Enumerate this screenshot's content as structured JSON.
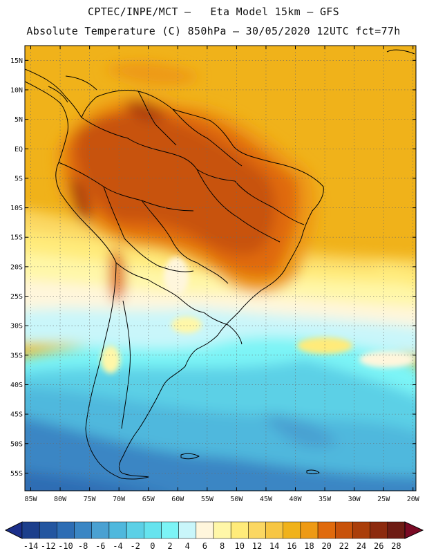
{
  "header": {
    "line1": "CPTEC/INPE/MCT –   Eta Model 15km – GFS",
    "line2": "Absolute Temperature (C) 850hPa – 30/05/2020 12UTC fct=77h"
  },
  "map": {
    "lon_range": [
      -86,
      -19.5
    ],
    "lat_range": [
      -58,
      17.5
    ],
    "lat_labels": [
      "15N",
      "10N",
      "5N",
      "EQ",
      "5S",
      "10S",
      "15S",
      "20S",
      "25S",
      "30S",
      "35S",
      "40S",
      "45S",
      "50S",
      "55S"
    ],
    "lon_labels": [
      "85W",
      "80W",
      "75W",
      "70W",
      "65W",
      "60W",
      "55W",
      "50W",
      "45W",
      "40W",
      "35W",
      "30W",
      "25W",
      "20W"
    ]
  },
  "colorbar": {
    "ticks": [
      "-14",
      "-12",
      "-10",
      "-8",
      "-6",
      "-4",
      "-2",
      "0",
      "2",
      "4",
      "6",
      "8",
      "10",
      "12",
      "14",
      "16",
      "18",
      "20",
      "22",
      "24",
      "26",
      "28"
    ],
    "colors": [
      "#1c3f8c",
      "#2356a0",
      "#2d6db4",
      "#3a86c4",
      "#4aa1d2",
      "#4fb8dd",
      "#5cd0e6",
      "#66e3ee",
      "#7cf4f6",
      "#c9f6fa",
      "#fff6dc",
      "#fff7a8",
      "#ffeb7a",
      "#fbd762",
      "#f7c643",
      "#f0b21a",
      "#ee9a14",
      "#e06a0c",
      "#c8520a",
      "#aa3e0a",
      "#8c2a0e",
      "#6e1c14"
    ],
    "under_color": "#1b2f8a",
    "over_color": "#7a0a24"
  }
}
